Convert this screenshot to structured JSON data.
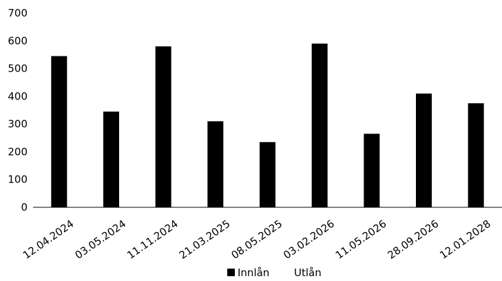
{
  "chart_data": {
    "type": "bar",
    "categories": [
      "12.04.2024",
      "03.05.2024",
      "11.11.2024",
      "21.03.2025",
      "08.05.2025",
      "03.02.2026",
      "11.05.2026",
      "28.09.2026",
      "12.01.2028"
    ],
    "series": [
      {
        "name": "Innlån",
        "values": [
          545,
          345,
          580,
          310,
          235,
          590,
          265,
          410,
          375
        ],
        "color": "#000000"
      },
      {
        "name": "Utlån",
        "values": [
          null,
          null,
          null,
          null,
          null,
          null,
          null,
          null,
          null
        ],
        "color": "#ffffff"
      }
    ],
    "ylim": [
      0,
      700
    ],
    "yticks": [
      0,
      100,
      200,
      300,
      400,
      500,
      600,
      700
    ],
    "grid": false,
    "legend_position": "bottom",
    "title": "",
    "xlabel": "",
    "ylabel": ""
  }
}
